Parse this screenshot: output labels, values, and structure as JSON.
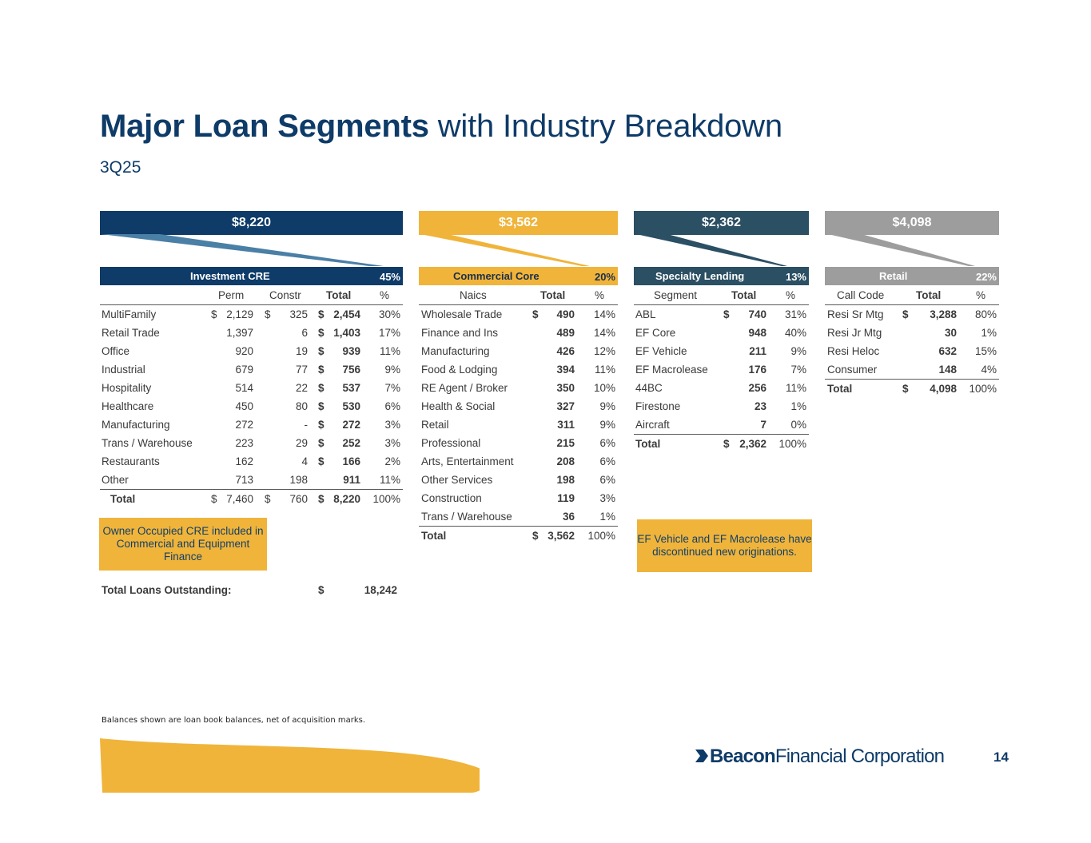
{
  "title": {
    "bold": "Major Loan Segments",
    "rest": " with Industry Breakdown"
  },
  "subtitle": "3Q25",
  "colors": {
    "navy": "#0e3b68",
    "gold": "#f0b43a",
    "slate": "#2b4f63",
    "gray": "#9d9d9d"
  },
  "banners": {
    "investment": "$8,220",
    "commercial": "$3,562",
    "specialty": "$2,362",
    "retail": "$4,098"
  },
  "investment": {
    "name": "Investment CRE",
    "pct": "45%",
    "cols": {
      "perm": "Perm",
      "constr": "Constr",
      "total": "Total",
      "pct": "%"
    },
    "rows": [
      {
        "label": "MultiFamily",
        "perm_d": "$",
        "perm": "2,129",
        "constr_d": "$",
        "constr": "325",
        "total_d": "$",
        "total": "2,454",
        "pct": "30%"
      },
      {
        "label": "Retail Trade",
        "perm_d": "",
        "perm": "1,397",
        "constr_d": "",
        "constr": "6",
        "total_d": "$",
        "total": "1,403",
        "pct": "17%"
      },
      {
        "label": "Office",
        "perm_d": "",
        "perm": "920",
        "constr_d": "",
        "constr": "19",
        "total_d": "$",
        "total": "939",
        "pct": "11%"
      },
      {
        "label": "Industrial",
        "perm_d": "",
        "perm": "679",
        "constr_d": "",
        "constr": "77",
        "total_d": "$",
        "total": "756",
        "pct": "9%"
      },
      {
        "label": "Hospitality",
        "perm_d": "",
        "perm": "514",
        "constr_d": "",
        "constr": "22",
        "total_d": "$",
        "total": "537",
        "pct": "7%"
      },
      {
        "label": "Healthcare",
        "perm_d": "",
        "perm": "450",
        "constr_d": "",
        "constr": "80",
        "total_d": "$",
        "total": "530",
        "pct": "6%"
      },
      {
        "label": "Manufacturing",
        "perm_d": "",
        "perm": "272",
        "constr_d": "",
        "constr": "-",
        "total_d": "$",
        "total": "272",
        "pct": "3%"
      },
      {
        "label": "Trans / Warehouse",
        "perm_d": "",
        "perm": "223",
        "constr_d": "",
        "constr": "29",
        "total_d": "$",
        "total": "252",
        "pct": "3%"
      },
      {
        "label": "Restaurants",
        "perm_d": "",
        "perm": "162",
        "constr_d": "",
        "constr": "4",
        "total_d": "$",
        "total": "166",
        "pct": "2%"
      },
      {
        "label": "Other",
        "perm_d": "",
        "perm": "713",
        "constr_d": "",
        "constr": "198",
        "total_d": "",
        "total": "911",
        "pct": "11%"
      }
    ],
    "total": {
      "label": "Total",
      "perm_d": "$",
      "perm": "7,460",
      "constr_d": "$",
      "constr": "760",
      "total_d": "$",
      "total": "8,220",
      "pct": "100%"
    },
    "note": "Owner Occupied CRE included in Commercial and Equipment Finance",
    "grand": {
      "label": "Total Loans Outstanding:",
      "dollar": "$",
      "value": "18,242"
    }
  },
  "commercial": {
    "name": "Commercial Core",
    "pct": "20%",
    "cols": {
      "label": "Naics",
      "total": "Total",
      "pct": "%"
    },
    "rows": [
      {
        "label": "Wholesale Trade",
        "d": "$",
        "total": "490",
        "pct": "14%"
      },
      {
        "label": "Finance and Ins",
        "d": "",
        "total": "489",
        "pct": "14%"
      },
      {
        "label": "Manufacturing",
        "d": "",
        "total": "426",
        "pct": "12%"
      },
      {
        "label": "Food & Lodging",
        "d": "",
        "total": "394",
        "pct": "11%"
      },
      {
        "label": "RE Agent / Broker",
        "d": "",
        "total": "350",
        "pct": "10%"
      },
      {
        "label": "Health & Social",
        "d": "",
        "total": "327",
        "pct": "9%"
      },
      {
        "label": "Retail",
        "d": "",
        "total": "311",
        "pct": "9%"
      },
      {
        "label": "Professional",
        "d": "",
        "total": "215",
        "pct": "6%"
      },
      {
        "label": "Arts, Entertainment",
        "d": "",
        "total": "208",
        "pct": "6%"
      },
      {
        "label": "Other Services",
        "d": "",
        "total": "198",
        "pct": "6%"
      },
      {
        "label": "Construction",
        "d": "",
        "total": "119",
        "pct": "3%"
      },
      {
        "label": "Trans / Warehouse",
        "d": "",
        "total": "36",
        "pct": "1%"
      }
    ],
    "total": {
      "label": "Total",
      "d": "$",
      "total": "3,562",
      "pct": "100%"
    }
  },
  "specialty": {
    "name": "Specialty Lending",
    "pct": "13%",
    "cols": {
      "label": "Segment",
      "total": "Total",
      "pct": "%"
    },
    "rows": [
      {
        "label": "ABL",
        "d": "$",
        "total": "740",
        "pct": "31%"
      },
      {
        "label": "EF Core",
        "d": "",
        "total": "948",
        "pct": "40%"
      },
      {
        "label": "EF Vehicle",
        "d": "",
        "total": "211",
        "pct": "9%"
      },
      {
        "label": "EF Macrolease",
        "d": "",
        "total": "176",
        "pct": "7%"
      },
      {
        "label": "44BC",
        "d": "",
        "total": "256",
        "pct": "11%"
      },
      {
        "label": "Firestone",
        "d": "",
        "total": "23",
        "pct": "1%"
      },
      {
        "label": "Aircraft",
        "d": "",
        "total": "7",
        "pct": "0%"
      }
    ],
    "total": {
      "label": "Total",
      "d": "$",
      "total": "2,362",
      "pct": "100%"
    },
    "note": "EF Vehicle and EF Macrolease have discontinued new originations."
  },
  "retail": {
    "name": "Retail",
    "pct": "22%",
    "cols": {
      "label": "Call Code",
      "total": "Total",
      "pct": "%"
    },
    "rows": [
      {
        "label": "Resi Sr Mtg",
        "d": "$",
        "total": "3,288",
        "pct": "80%"
      },
      {
        "label": "Resi Jr Mtg",
        "d": "",
        "total": "30",
        "pct": "1%"
      },
      {
        "label": "Resi Heloc",
        "d": "",
        "total": "632",
        "pct": "15%"
      },
      {
        "label": "Consumer",
        "d": "",
        "total": "148",
        "pct": "4%"
      }
    ],
    "total": {
      "label": "Total",
      "d": "$",
      "total": "4,098",
      "pct": "100%"
    }
  },
  "footnote": "Balances shown are loan book balances, net of acquisition marks.",
  "logo": {
    "bold": "Beacon",
    "rest": "Financial Corporation"
  },
  "page_number": "14"
}
